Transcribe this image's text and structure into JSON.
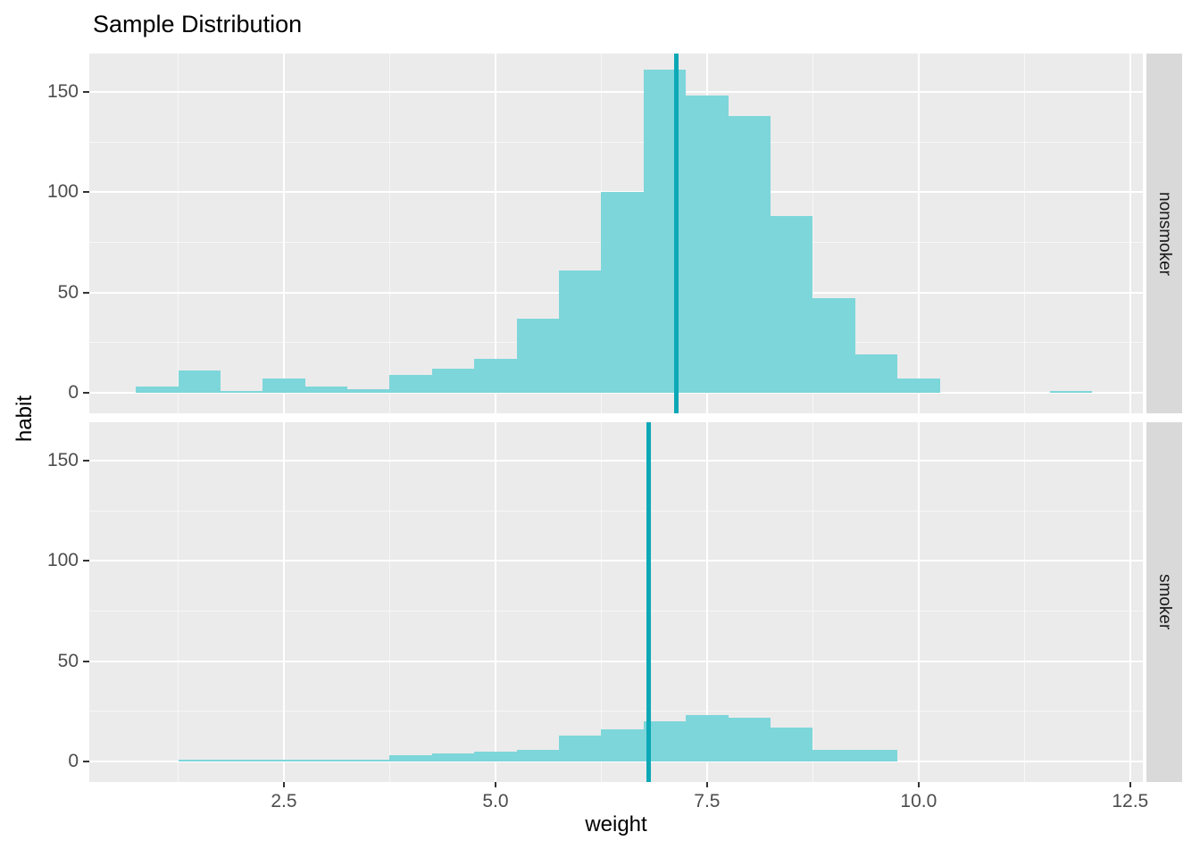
{
  "title": "Sample Distribution",
  "axes": {
    "x_label": "weight",
    "y_label": "habit",
    "x_tick_labels": [
      "2.5",
      "5.0",
      "7.5",
      "10.0",
      "12.5"
    ],
    "x_tick_values": [
      2.5,
      5.0,
      7.5,
      10.0,
      12.5
    ],
    "y_tick_labels": [
      "0",
      "50",
      "100",
      "150"
    ],
    "y_tick_values": [
      0,
      50,
      100,
      150
    ]
  },
  "colors": {
    "bar_fill": "#7DD6DA",
    "mean_line": "#0CA8B6",
    "panel_bg": "#EBEBEB",
    "strip_bg": "#D9D9D9",
    "grid_major": "#FFFFFF",
    "grid_minor": "rgba(255,255,255,0.6)",
    "axis_text": "#4D4D4D",
    "tick_mark": "#333333",
    "title_text": "#000000"
  },
  "chart_data": {
    "type": "bar",
    "subtype": "faceted-histogram",
    "title": "Sample Distribution",
    "xlabel": "weight",
    "ylabel": "habit",
    "legend": "none",
    "grid": "on",
    "x_range": [
      0.2,
      12.65
    ],
    "ylim": [
      0,
      169
    ],
    "binwidth": 0.5,
    "x_minor_gridlines": [
      1.25,
      3.75,
      6.25,
      8.75,
      11.25
    ],
    "y_minor_gridlines": [
      25,
      75,
      125
    ],
    "facets": [
      {
        "label": "nonsmoker",
        "mean_vline_x": 7.14,
        "bins": [
          {
            "x0": 0.75,
            "count": 3
          },
          {
            "x0": 1.25,
            "count": 11
          },
          {
            "x0": 1.75,
            "count": 1
          },
          {
            "x0": 2.25,
            "count": 7
          },
          {
            "x0": 2.75,
            "count": 3
          },
          {
            "x0": 3.25,
            "count": 2
          },
          {
            "x0": 3.75,
            "count": 9
          },
          {
            "x0": 4.25,
            "count": 12
          },
          {
            "x0": 4.75,
            "count": 17
          },
          {
            "x0": 5.25,
            "count": 37
          },
          {
            "x0": 5.75,
            "count": 61
          },
          {
            "x0": 6.25,
            "count": 100
          },
          {
            "x0": 6.75,
            "count": 161
          },
          {
            "x0": 7.25,
            "count": 148
          },
          {
            "x0": 7.75,
            "count": 138
          },
          {
            "x0": 8.25,
            "count": 88
          },
          {
            "x0": 8.75,
            "count": 47
          },
          {
            "x0": 9.25,
            "count": 19
          },
          {
            "x0": 9.75,
            "count": 7
          },
          {
            "x0": 11.55,
            "count": 1
          }
        ]
      },
      {
        "label": "smoker",
        "mean_vline_x": 6.81,
        "bins": [
          {
            "x0": 1.25,
            "count": 1
          },
          {
            "x0": 1.75,
            "count": 1
          },
          {
            "x0": 2.25,
            "count": 1
          },
          {
            "x0": 2.75,
            "count": 1
          },
          {
            "x0": 3.25,
            "count": 1
          },
          {
            "x0": 3.75,
            "count": 3
          },
          {
            "x0": 4.25,
            "count": 4
          },
          {
            "x0": 4.75,
            "count": 5
          },
          {
            "x0": 5.25,
            "count": 6
          },
          {
            "x0": 5.75,
            "count": 13
          },
          {
            "x0": 6.25,
            "count": 16
          },
          {
            "x0": 6.75,
            "count": 20
          },
          {
            "x0": 7.25,
            "count": 23
          },
          {
            "x0": 7.75,
            "count": 22
          },
          {
            "x0": 8.25,
            "count": 17
          },
          {
            "x0": 8.75,
            "count": 6
          },
          {
            "x0": 9.25,
            "count": 6
          }
        ]
      }
    ]
  }
}
